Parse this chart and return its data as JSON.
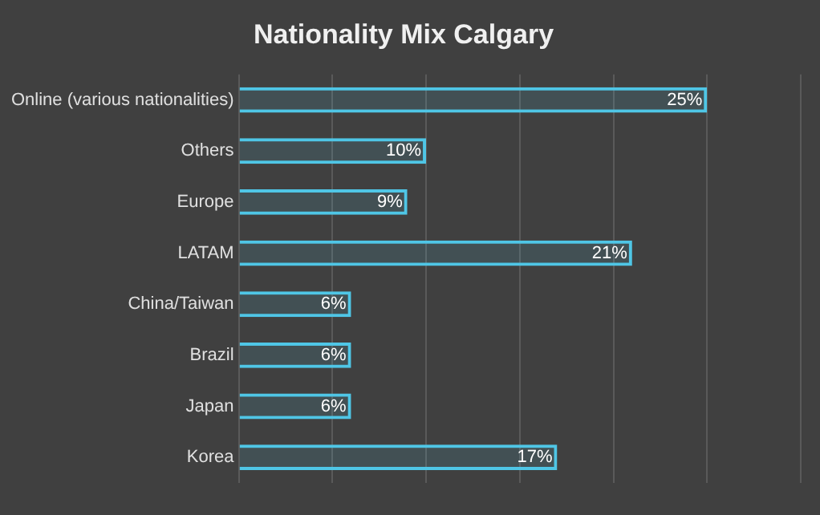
{
  "chart_data": {
    "type": "bar",
    "title": "Nationality Mix Calgary",
    "orientation": "horizontal",
    "categories": [
      "Online (various nationalities)",
      "Others",
      "Europe",
      "LATAM",
      "China/Taiwan",
      "Brazil",
      "Japan",
      "Korea"
    ],
    "values": [
      25,
      10,
      9,
      21,
      6,
      6,
      6,
      17
    ],
    "value_labels": [
      "25%",
      "10%",
      "9%",
      "21%",
      "6%",
      "6%",
      "6%",
      "17%"
    ],
    "color": "#4fc6e6",
    "xlim": [
      0,
      30
    ],
    "xticks": [
      {
        "value": 0,
        "label": null
      },
      {
        "value": 5,
        "label": null
      },
      {
        "value": 10,
        "label": null
      },
      {
        "value": 15,
        "label": null
      },
      {
        "value": 20,
        "label": null
      },
      {
        "value": 25,
        "label": null
      },
      {
        "value": 30,
        "label": null
      }
    ],
    "grid": "x",
    "tick_labels": "y"
  }
}
